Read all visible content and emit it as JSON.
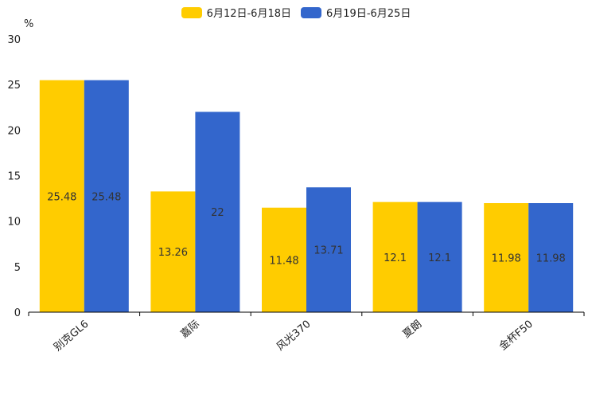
{
  "chart_data": {
    "type": "bar",
    "unit_label": "%",
    "categories": [
      "别克GL6",
      "嘉际",
      "风光370",
      "夏朗",
      "金杯F50"
    ],
    "series": [
      {
        "name": "6月12日-6月18日",
        "color": "#ffcc00",
        "values": [
          25.48,
          13.26,
          11.48,
          12.1,
          11.98
        ]
      },
      {
        "name": "6月19日-6月25日",
        "color": "#3366cc",
        "values": [
          25.48,
          22,
          13.71,
          12.1,
          11.98
        ]
      }
    ],
    "ylim": [
      0,
      30
    ],
    "yticks": [
      0,
      5,
      10,
      15,
      20,
      25,
      30
    ],
    "legend_position": "top-center"
  }
}
